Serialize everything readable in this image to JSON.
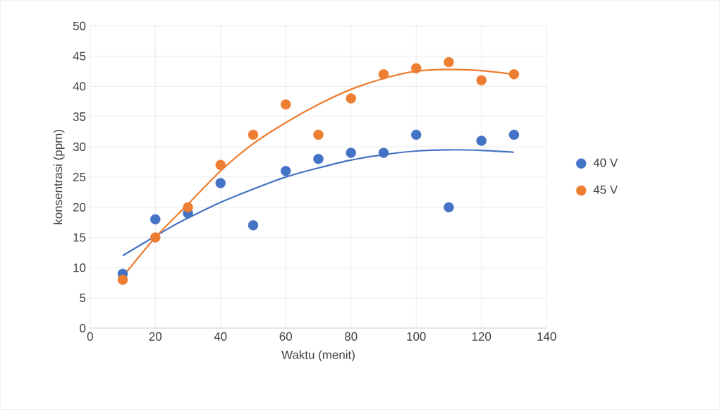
{
  "chart_data": {
    "type": "scatter",
    "xlabel": "Waktu (menit)",
    "ylabel": "konsentrasi (ppm)",
    "x": [
      10,
      20,
      30,
      40,
      50,
      60,
      70,
      80,
      90,
      100,
      110,
      120,
      130
    ],
    "series": [
      {
        "name": "40 V",
        "color": "#4472c4",
        "marker": "circle",
        "values": [
          9,
          18,
          19,
          24,
          17,
          26,
          28,
          29,
          29,
          32,
          20,
          31,
          32
        ]
      },
      {
        "name": "45 V",
        "color": "#ed7d31",
        "marker": "circle",
        "values": [
          8,
          15,
          20,
          27,
          32,
          37,
          32,
          38,
          42,
          43,
          44,
          41,
          42
        ]
      },
      {
        "type": "line",
        "color": "#4472c4",
        "marker": "none",
        "x": [
          10,
          25,
          30,
          40,
          50,
          60,
          70,
          80,
          90,
          100,
          110,
          120,
          130
        ],
        "values": [
          12,
          16.8,
          18.2,
          20.8,
          23,
          25,
          26.5,
          27.8,
          28.7,
          29.3,
          29.5,
          29.4,
          29.1
        ]
      },
      {
        "type": "line",
        "color": "#ed7d31",
        "marker": "none",
        "x": [
          10,
          20,
          30,
          40,
          50,
          60,
          70,
          80,
          90,
          100,
          110,
          120,
          130
        ],
        "values": [
          8.5,
          15,
          20.5,
          26,
          30.5,
          34,
          37,
          39.5,
          41.3,
          42.5,
          42.8,
          42.6,
          42
        ]
      }
    ],
    "xlim": [
      0,
      140
    ],
    "xticks": [
      0,
      20,
      40,
      60,
      80,
      100,
      120,
      140
    ],
    "ylim": [
      0,
      50
    ],
    "yticks": [
      0,
      5,
      10,
      15,
      20,
      25,
      30,
      35,
      40,
      45,
      50
    ],
    "grid": true,
    "legend": "right"
  }
}
